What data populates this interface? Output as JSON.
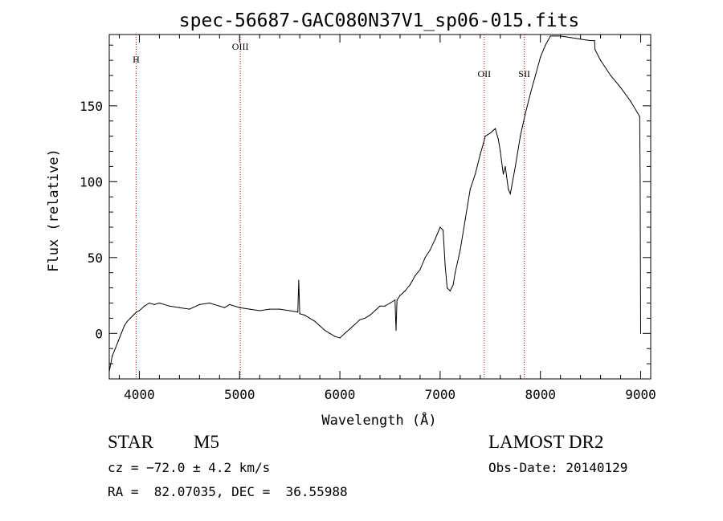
{
  "chart_data": {
    "type": "line",
    "title": "spec-56687-GAC080N37V1_sp06-015.fits",
    "xlabel": "Wavelength (Å)",
    "ylabel": "Flux (relative)",
    "xlim": [
      3700,
      9100
    ],
    "ylim": [
      -30,
      197
    ],
    "x_ticks": [
      4000,
      5000,
      6000,
      7000,
      8000,
      9000
    ],
    "x_tick_labels": [
      "4000",
      "5000",
      "6000",
      "7000",
      "8000",
      "9000"
    ],
    "y_ticks": [
      0,
      50,
      100,
      150
    ],
    "y_tick_labels": [
      "0",
      "50",
      "100",
      "150"
    ],
    "grid": false,
    "series": [
      {
        "color": "#000000",
        "x": [
          3700,
          3730,
          3760,
          3790,
          3820,
          3850,
          3880,
          3910,
          3940,
          3970,
          4000,
          4050,
          4100,
          4150,
          4200,
          4300,
          4400,
          4500,
          4600,
          4700,
          4800,
          4850,
          4900,
          5000,
          5100,
          5200,
          5300,
          5400,
          5500,
          5580,
          5590,
          5600,
          5650,
          5700,
          5750,
          5800,
          5850,
          5900,
          5950,
          6000,
          6050,
          6100,
          6150,
          6200,
          6250,
          6300,
          6350,
          6400,
          6450,
          6500,
          6550,
          6560,
          6570,
          6600,
          6650,
          6700,
          6750,
          6800,
          6850,
          6900,
          6950,
          7000,
          7030,
          7050,
          7070,
          7100,
          7130,
          7150,
          7200,
          7250,
          7300,
          7350,
          7400,
          7430,
          7450,
          7500,
          7550,
          7580,
          7600,
          7630,
          7650,
          7680,
          7700,
          7750,
          7800,
          7850,
          7900,
          7950,
          8000,
          8050,
          8100,
          8200,
          8300,
          8400,
          8500,
          8540,
          8545,
          8600,
          8700,
          8800,
          8900,
          8990,
          8995,
          9000
        ],
        "y": [
          -25,
          -15,
          -10,
          -5,
          0,
          5,
          8,
          10,
          12,
          14,
          15,
          18,
          20,
          19,
          20,
          18,
          17,
          16,
          19,
          20,
          18,
          17,
          19,
          17,
          16,
          15,
          16,
          16,
          15,
          14,
          35,
          13,
          12,
          10,
          8,
          5,
          2,
          0,
          -2,
          -3,
          0,
          3,
          6,
          9,
          10,
          12,
          15,
          18,
          18,
          20,
          22,
          2,
          22,
          25,
          28,
          32,
          38,
          42,
          50,
          55,
          62,
          70,
          68,
          45,
          30,
          28,
          32,
          40,
          55,
          75,
          95,
          105,
          118,
          125,
          130,
          132,
          135,
          128,
          120,
          105,
          110,
          95,
          92,
          110,
          130,
          145,
          158,
          170,
          182,
          190,
          196,
          196,
          195,
          194,
          193,
          193,
          187,
          180,
          170,
          162,
          153,
          143,
          100,
          0
        ]
      }
    ],
    "line_markers": [
      {
        "label": "H",
        "x": 3968
      },
      {
        "label": "OIII",
        "x": 5007
      },
      {
        "label": "OII",
        "x": 7440
      },
      {
        "label": "SII",
        "x": 7840
      }
    ]
  },
  "info": {
    "object_class": "STAR",
    "subclass": "M5",
    "cz_line": "cz = −72.0 ± 4.2 km/s",
    "coords_line": "RA =  82.07035, DEC =  36.55988",
    "survey": "LAMOST DR2",
    "obs_date_line": "Obs-Date: 20140129"
  },
  "colors": {
    "axis": "#000000",
    "spectrum": "#000000",
    "marker_line": "#cc0000"
  }
}
